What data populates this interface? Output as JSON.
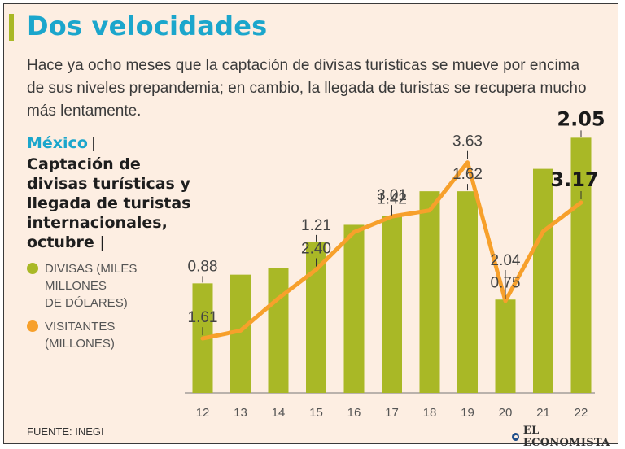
{
  "header": {
    "title": "Dos velocidades",
    "subtitle": "Hace ya ocho meses que la captación de divisas turísticas se mueve por encima de sus niveles prepandemia; en cambio, la llegada de turistas se recupera mucho más lentamente."
  },
  "sidebar": {
    "country": "México",
    "separator": "|",
    "chart_title": "Captación de divisas turísticas y llegada de turistas internacionales, octubre |",
    "legend": [
      {
        "label": "DIVISAS (MILES\nMILLONES\nDE DÓLARES)",
        "color": "#a9b826"
      },
      {
        "label": "VISITANTES\n(MILLONES)",
        "color": "#f7a02b"
      }
    ]
  },
  "chart_data": {
    "type": "bar",
    "title": "Captación de divisas turísticas y llegada de turistas internacionales, octubre",
    "categories": [
      "12",
      "13",
      "14",
      "15",
      "16",
      "17",
      "18",
      "19",
      "20",
      "21",
      "22"
    ],
    "series": [
      {
        "name": "DIVISAS (MILES MILLONES DE DÓLARES)",
        "type": "bar",
        "color": "#a9b826",
        "values": [
          0.88,
          0.95,
          1.0,
          1.21,
          1.35,
          1.42,
          1.62,
          1.62,
          0.75,
          1.8,
          2.05
        ],
        "labels": [
          "0.88",
          null,
          null,
          "1.21",
          null,
          "1.42",
          null,
          "1.62",
          "0.75",
          null,
          "2.05"
        ]
      },
      {
        "name": "VISITANTES (MILLONES)",
        "type": "line",
        "color": "#f7a02b",
        "values": [
          1.61,
          1.7,
          2.07,
          2.4,
          2.83,
          3.01,
          3.08,
          3.63,
          2.04,
          2.84,
          3.17
        ],
        "labels": [
          "1.61",
          null,
          null,
          "2.40",
          null,
          "3.01",
          null,
          "3.63",
          "2.04",
          null,
          "3.17"
        ]
      }
    ],
    "xlabel": "",
    "ylabel": ""
  },
  "footer": {
    "source": "FUENTE: INEGI",
    "brand": "EL ECONOMISTA"
  }
}
